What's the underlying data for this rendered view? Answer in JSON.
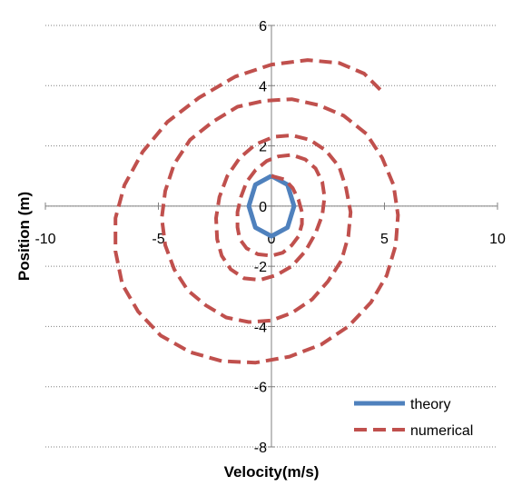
{
  "chart_data": {
    "type": "scatter",
    "title": "",
    "xlabel": "Velocity(m/s)",
    "ylabel": "Position (m)",
    "xlim": [
      -10,
      10
    ],
    "ylim": [
      -8,
      6
    ],
    "xticks": [
      -10,
      -5,
      0,
      5,
      10
    ],
    "yticks": [
      -8,
      -6,
      -4,
      -2,
      0,
      2,
      4,
      6
    ],
    "grid": "horizontal dashed",
    "legend_position": "bottom-right",
    "series": [
      {
        "name": "theory",
        "color": "#4f81bd",
        "style": "solid",
        "x": [
          0,
          0.71,
          1,
          0.71,
          0,
          -0.71,
          -1,
          -0.71,
          0
        ],
        "y": [
          1,
          0.71,
          0,
          -0.71,
          -1,
          -0.71,
          0,
          0.71,
          1
        ]
      },
      {
        "name": "numerical",
        "color": "#c0504d",
        "style": "dashed",
        "x": [
          0.0,
          0.6,
          0.94,
          1.2,
          1.35,
          1.35,
          1.2,
          0.9,
          0.5,
          0.0,
          -0.6,
          -1.1,
          -1.4,
          -1.5,
          -1.5,
          -1.35,
          -1.1,
          -0.7,
          -0.2,
          0.3,
          0.9,
          1.5,
          1.95,
          2.25,
          2.35,
          2.25,
          1.95,
          1.5,
          0.9,
          0.2,
          -0.5,
          -1.2,
          -1.8,
          -2.2,
          -2.4,
          -2.45,
          -2.3,
          -1.95,
          -1.4,
          -0.7,
          0.1,
          0.9,
          1.7,
          2.4,
          3.0,
          3.3,
          3.5,
          3.4,
          3.1,
          2.5,
          1.8,
          0.9,
          0.0,
          -1.0,
          -2.0,
          -2.9,
          -3.7,
          -4.3,
          -4.7,
          -4.85,
          -4.7,
          -4.3,
          -3.6,
          -2.6,
          -1.5,
          -0.3,
          0.9,
          2.1,
          3.2,
          4.2,
          4.9,
          5.4,
          5.6,
          5.5,
          5.1,
          4.4,
          3.4,
          2.2,
          0.8,
          -0.7,
          -2.2,
          -3.6,
          -4.9,
          -5.9,
          -6.6,
          -6.9,
          -6.9,
          -6.5,
          -5.7,
          -4.6,
          -3.2,
          -1.6,
          0.0,
          1.6,
          3.0,
          4.1,
          4.9
        ],
        "y": [
          1.0,
          0.88,
          0.6,
          0.2,
          -0.2,
          -0.6,
          -1.0,
          -1.3,
          -1.55,
          -1.65,
          -1.6,
          -1.4,
          -1.1,
          -0.7,
          -0.2,
          0.3,
          0.8,
          1.2,
          1.5,
          1.65,
          1.7,
          1.55,
          1.25,
          0.8,
          0.3,
          -0.3,
          -0.9,
          -1.5,
          -2.0,
          -2.3,
          -2.45,
          -2.4,
          -2.1,
          -1.65,
          -1.1,
          -0.4,
          0.3,
          1.0,
          1.6,
          2.05,
          2.3,
          2.35,
          2.2,
          1.85,
          1.3,
          0.6,
          -0.2,
          -1.0,
          -1.8,
          -2.5,
          -3.1,
          -3.55,
          -3.8,
          -3.85,
          -3.7,
          -3.3,
          -2.8,
          -2.1,
          -1.3,
          -0.4,
          0.5,
          1.4,
          2.2,
          2.8,
          3.3,
          3.5,
          3.55,
          3.35,
          3.0,
          2.4,
          1.6,
          0.7,
          -0.3,
          -1.3,
          -2.3,
          -3.2,
          -4.0,
          -4.6,
          -5.0,
          -5.2,
          -5.15,
          -4.85,
          -4.3,
          -3.5,
          -2.6,
          -1.5,
          -0.4,
          0.7,
          1.8,
          2.8,
          3.6,
          4.3,
          4.7,
          4.85,
          4.75,
          4.4,
          3.8
        ]
      }
    ]
  }
}
